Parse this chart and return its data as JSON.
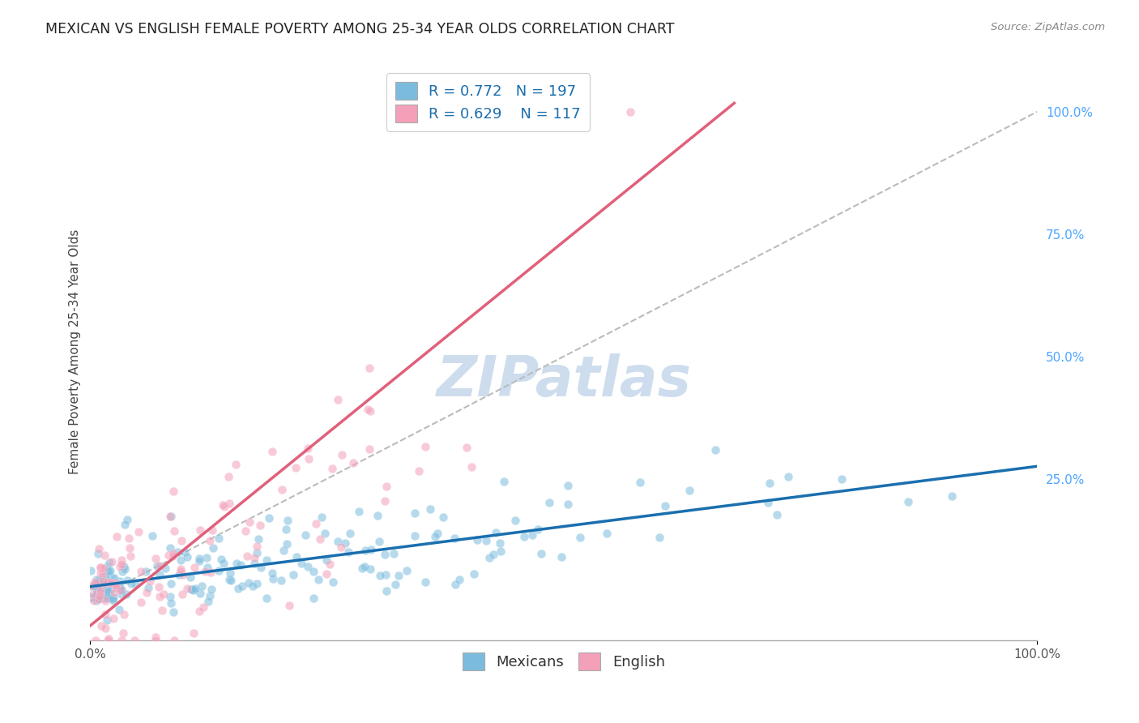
{
  "title": "MEXICAN VS ENGLISH FEMALE POVERTY AMONG 25-34 YEAR OLDS CORRELATION CHART",
  "source": "Source: ZipAtlas.com",
  "ylabel": "Female Poverty Among 25-34 Year Olds",
  "xlim": [
    0.0,
    1.0
  ],
  "ylim": [
    -0.08,
    1.1
  ],
  "x_tick_positions": [
    0.0,
    1.0
  ],
  "x_tick_labels": [
    "0.0%",
    "100.0%"
  ],
  "y_tick_positions_right": [
    0.25,
    0.5,
    0.75,
    1.0
  ],
  "y_tick_labels_right": [
    "25.0%",
    "50.0%",
    "75.0%",
    "100.0%"
  ],
  "mexicans_R": "0.772",
  "mexicans_N": "197",
  "english_R": "0.629",
  "english_N": "117",
  "mexicans_color": "#7bbcde",
  "english_color": "#f4a0b8",
  "mexicans_line_color": "#1a6faf",
  "english_line_color": "#e0607a",
  "diagonal_color": "#bbbbbb",
  "background_color": "#ffffff",
  "grid_color": "#d8d8d8",
  "watermark_color": "#c5d8ec",
  "title_fontsize": 12.5,
  "legend_fontsize": 13,
  "axis_label_fontsize": 11,
  "tick_fontsize": 11,
  "right_tick_color": "#4da6ff",
  "mexicans_seed": 42,
  "english_seed": 123,
  "mexicans_n": 197,
  "english_n": 117
}
